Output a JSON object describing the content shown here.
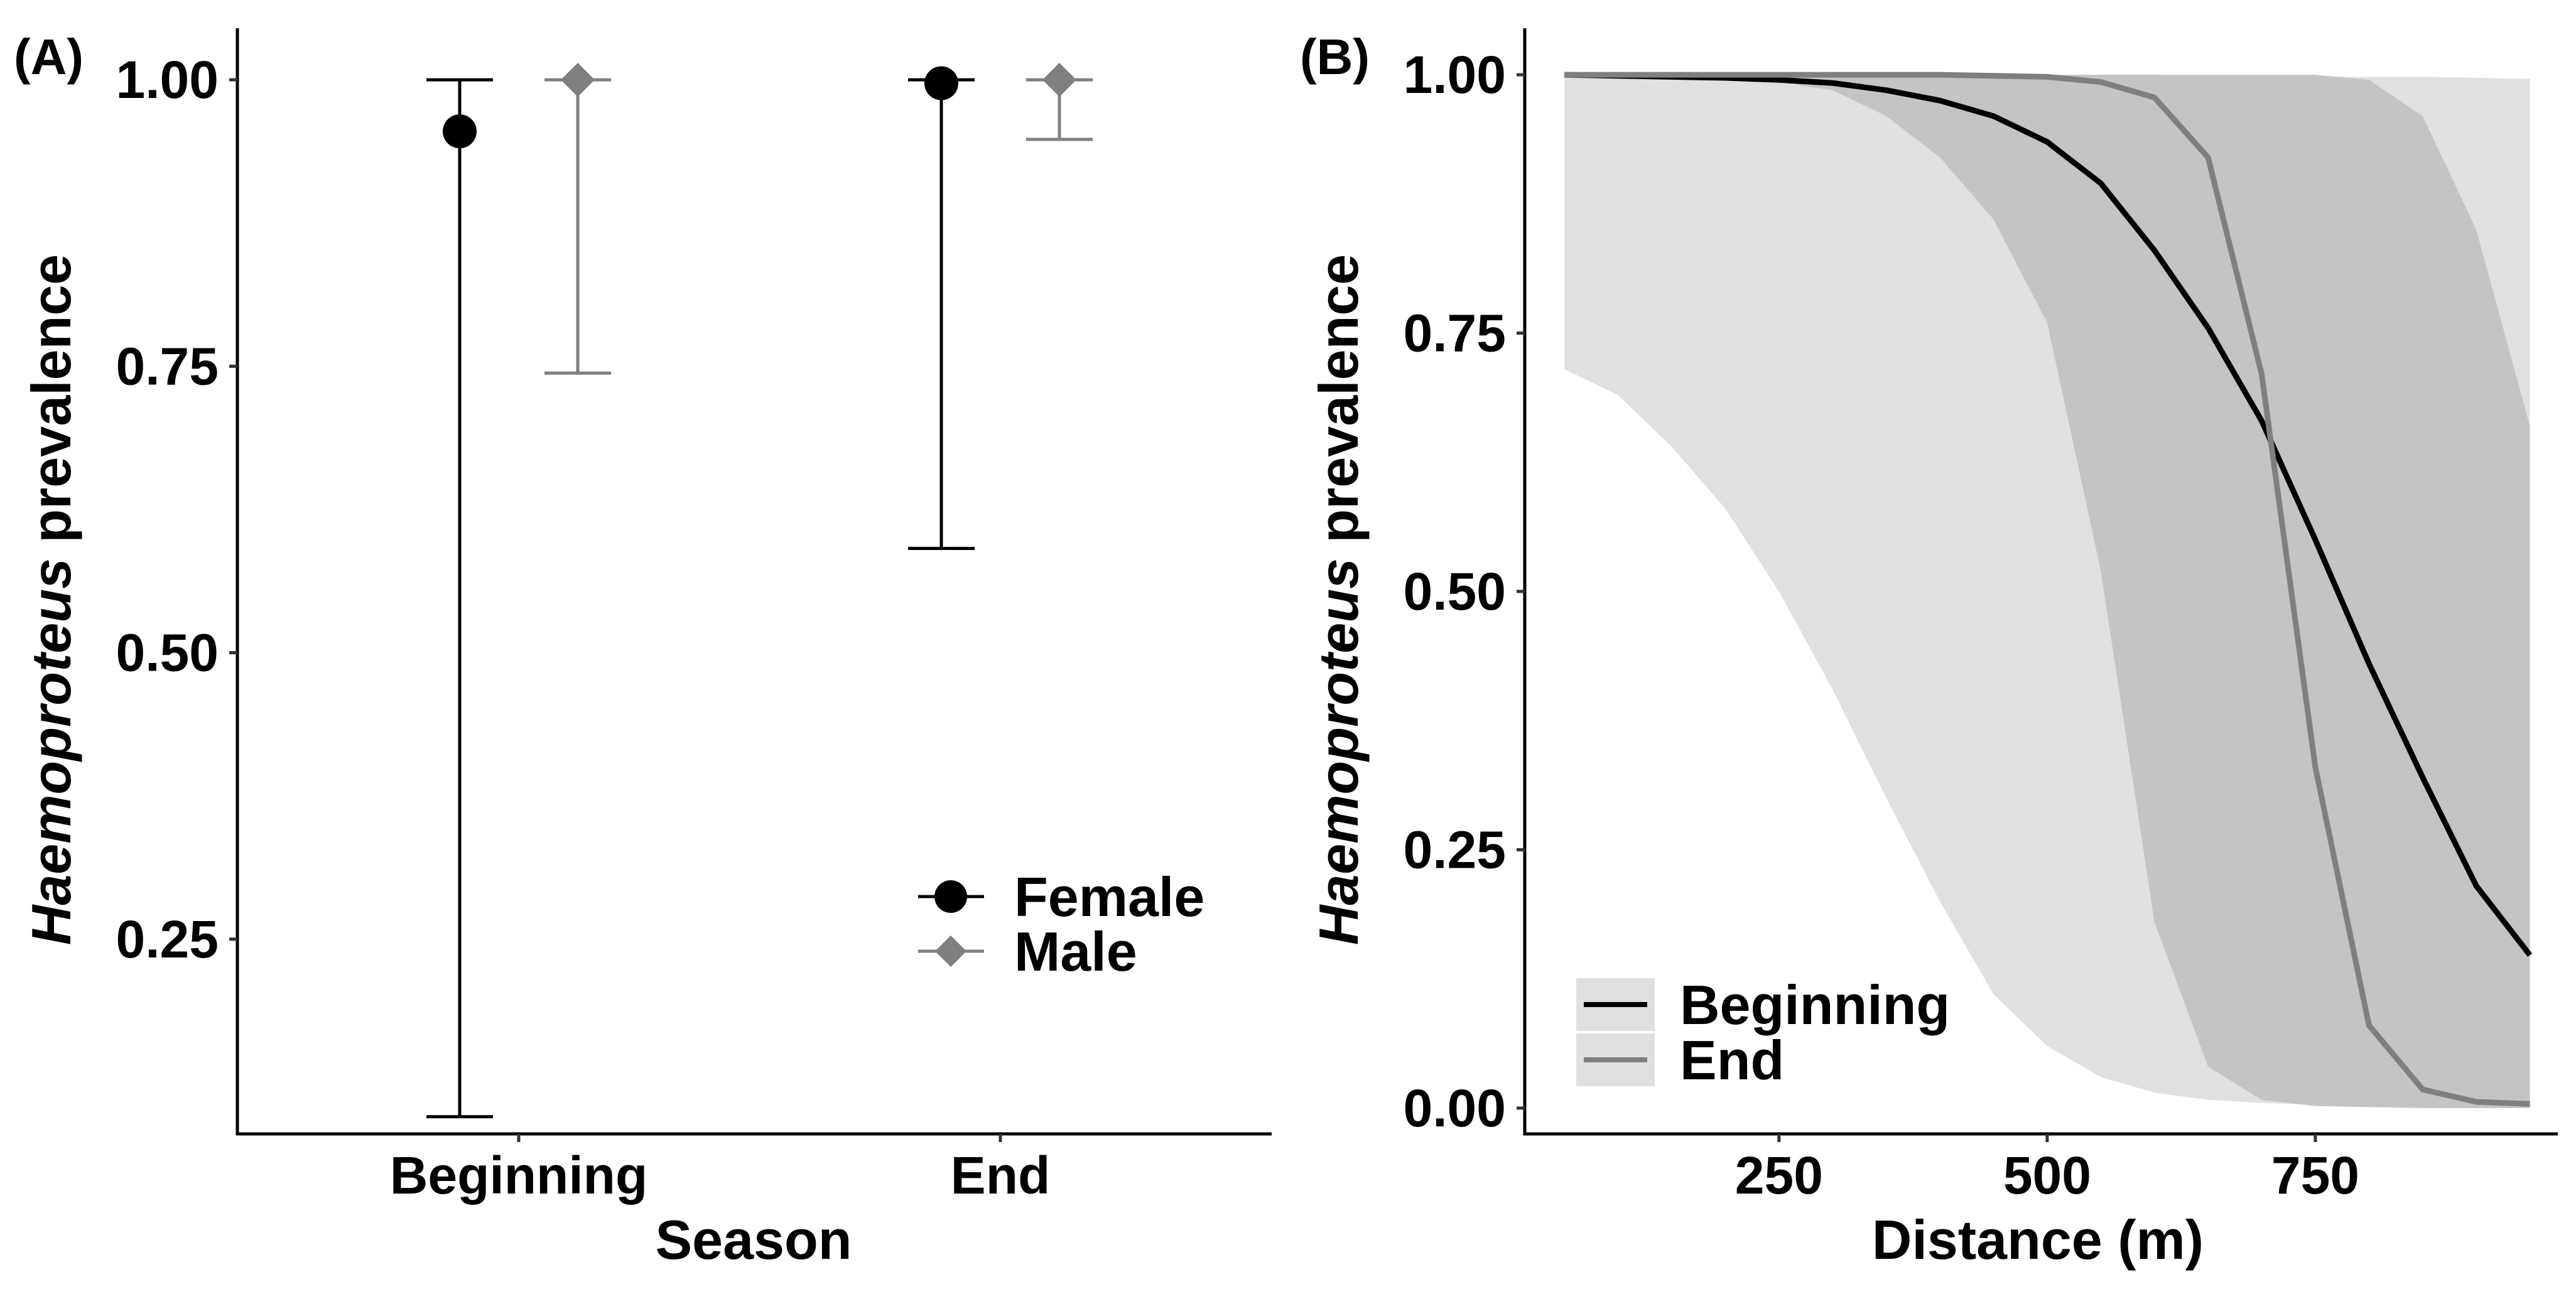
{
  "chart_data": [
    {
      "panel": "(A)",
      "type": "scatter",
      "subtype": "point-range",
      "xlabel": "Season",
      "ylabel": "Haemoproteus prevalence",
      "ylabel_italic_part": "Haemoproteus",
      "ylabel_rest": " prevalence",
      "categories": [
        "Beginning",
        "End"
      ],
      "ylim": [
        0.08,
        1.045
      ],
      "yticks": [
        0.25,
        0.5,
        0.75,
        1.0
      ],
      "ytick_labels": [
        "0.25",
        "0.50",
        "0.75",
        "1.00"
      ],
      "series": [
        {
          "name": "Female",
          "marker": "circle",
          "color": "#000000",
          "values": [
            0.955,
            0.997
          ],
          "lower": [
            0.095,
            0.591
          ],
          "upper": [
            1.0,
            1.0
          ]
        },
        {
          "name": "Male",
          "marker": "diamond",
          "color": "#7f7f7f",
          "values": [
            1.0,
            1.0
          ],
          "lower": [
            0.744,
            0.948
          ],
          "upper": [
            1.0,
            1.0
          ]
        }
      ],
      "legend": {
        "position": "bottom-right",
        "entries": [
          "Female",
          "Male"
        ]
      },
      "grid": false
    },
    {
      "panel": "(B)",
      "type": "line",
      "subtype": "line-with-ribbons",
      "xlabel": "Distance (m)",
      "ylabel": "Haemoproteus prevalence",
      "ylabel_italic_part": "Haemoproteus",
      "ylabel_rest": " prevalence",
      "xlim": [
        13,
        976
      ],
      "ylim": [
        -0.025,
        1.045
      ],
      "xticks": [
        250,
        500,
        750
      ],
      "xtick_labels": [
        "250",
        "500",
        "750"
      ],
      "yticks": [
        0.0,
        0.25,
        0.5,
        0.75,
        1.0
      ],
      "ytick_labels": [
        "0.00",
        "0.25",
        "0.50",
        "0.75",
        "1.00"
      ],
      "x": [
        50,
        100,
        150,
        200,
        250,
        300,
        350,
        400,
        450,
        500,
        550,
        600,
        650,
        700,
        750,
        800,
        850,
        900,
        950
      ],
      "series": [
        {
          "name": "Beginning",
          "color": "#000000",
          "ribbon_color": "#e0e0e0",
          "values": [
            1.0,
            0.999,
            0.998,
            0.997,
            0.995,
            0.992,
            0.985,
            0.975,
            0.96,
            0.935,
            0.895,
            0.83,
            0.755,
            0.665,
            0.55,
            0.43,
            0.32,
            0.215,
            0.148
          ],
          "lower": [
            0.715,
            0.69,
            0.64,
            0.58,
            0.5,
            0.405,
            0.3,
            0.2,
            0.11,
            0.06,
            0.03,
            0.015,
            0.008,
            0.005,
            0.003,
            0.002,
            0.002,
            0.002,
            0.002
          ],
          "upper": [
            1.0,
            1.0,
            1.0,
            1.0,
            1.0,
            1.0,
            1.0,
            1.0,
            1.0,
            1.0,
            1.0,
            1.0,
            0.999,
            0.999,
            0.998,
            0.998,
            0.998,
            0.997,
            0.996
          ]
        },
        {
          "name": "End",
          "color": "#7f7f7f",
          "ribbon_color": "#c4c4c4",
          "values": [
            1.0,
            1.0,
            1.0,
            1.0,
            1.0,
            1.0,
            1.0,
            1.0,
            0.999,
            0.998,
            0.993,
            0.978,
            0.92,
            0.71,
            0.33,
            0.08,
            0.018,
            0.006,
            0.004
          ],
          "lower": [
            1.0,
            1.0,
            0.999,
            0.997,
            0.993,
            0.985,
            0.96,
            0.92,
            0.86,
            0.76,
            0.52,
            0.18,
            0.04,
            0.008,
            0.002,
            0.001,
            0.0,
            0.0,
            0.0
          ],
          "upper": [
            1.0,
            1.0,
            1.0,
            1.0,
            1.0,
            1.0,
            1.0,
            1.0,
            1.0,
            1.0,
            1.0,
            1.0,
            1.0,
            1.0,
            1.0,
            0.995,
            0.96,
            0.85,
            0.66
          ]
        }
      ],
      "legend": {
        "position": "bottom-left",
        "entries": [
          "Beginning",
          "End"
        ]
      },
      "grid": false
    }
  ]
}
